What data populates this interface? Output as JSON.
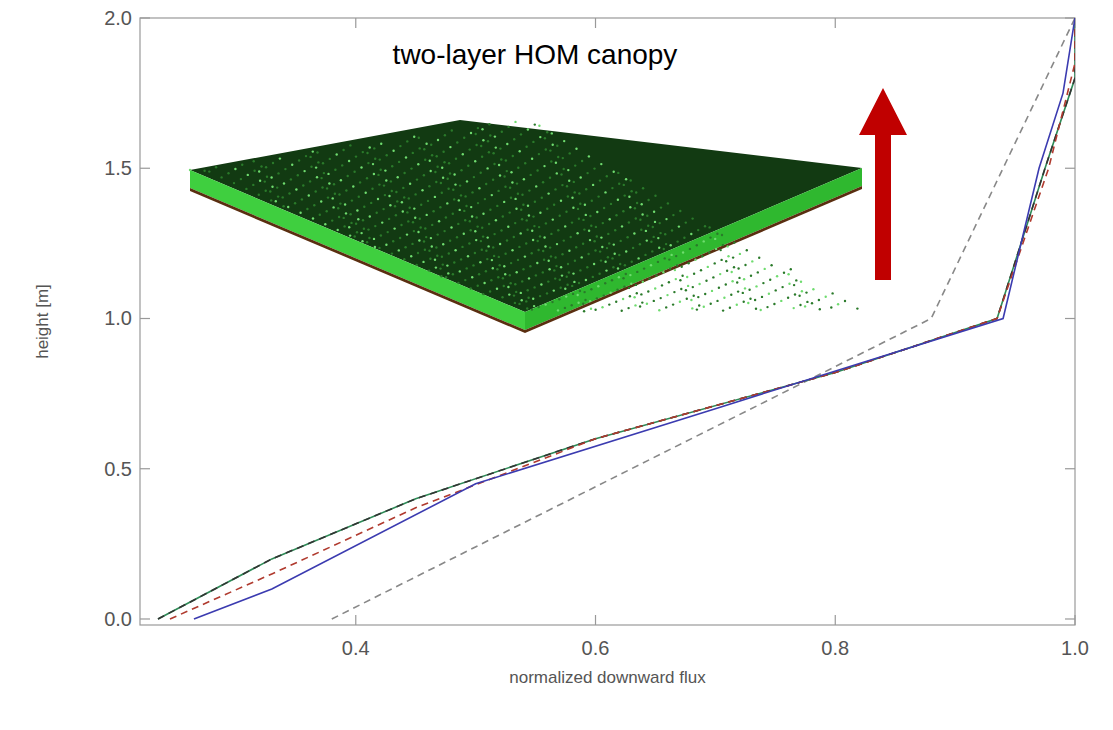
{
  "chart_data": {
    "type": "line",
    "annotation": "two-layer HOM canopy",
    "x_label": "normalized downward flux",
    "y_label": "height [m]",
    "xlim": [
      0.22,
      1.0
    ],
    "ylim": [
      -0.02,
      2.0
    ],
    "xticks": [
      0.4,
      0.6,
      0.8,
      {
        "value": 1.0,
        "label": "1.0"
      }
    ],
    "yticks": [
      {
        "value": 0.0,
        "label": "0.0"
      },
      0.5,
      {
        "value": 1.0,
        "label": "1.0"
      },
      1.5,
      {
        "value": 2.0,
        "label": "2.0"
      }
    ],
    "grid": false,
    "series": [
      {
        "color": "#888888",
        "line_style": "dashed",
        "x": [
          0.38,
          0.88,
          1.0
        ],
        "values": [
          0.0,
          1.0,
          2.0
        ]
      },
      {
        "color": "#2e8b57",
        "line_style": "solid",
        "x": [
          0.235,
          0.33,
          0.45,
          0.6,
          0.8,
          0.935,
          0.975,
          1.0,
          1.0
        ],
        "values": [
          0.0,
          0.2,
          0.4,
          0.6,
          0.82,
          1.0,
          1.5,
          1.8,
          2.0
        ]
      },
      {
        "color": "#333333",
        "line_style": "dashed",
        "x": [
          0.235,
          0.33,
          0.45,
          0.6,
          0.8,
          0.935,
          0.975,
          1.0,
          1.0
        ],
        "values": [
          0.0,
          0.2,
          0.4,
          0.6,
          0.82,
          1.0,
          1.5,
          1.8,
          2.0
        ]
      },
      {
        "color": "#b03a2e",
        "line_style": "dashed",
        "x": [
          0.245,
          0.33,
          0.45,
          0.6,
          0.8,
          0.935,
          0.978,
          1.0,
          1.0
        ],
        "values": [
          0.0,
          0.15,
          0.37,
          0.6,
          0.82,
          1.0,
          1.5,
          1.85,
          2.0
        ]
      },
      {
        "color": "#3b3bb0",
        "line_style": "solid",
        "x": [
          0.265,
          0.33,
          0.5,
          0.7,
          0.94,
          0.97,
          0.99,
          1.0
        ],
        "values": [
          0.0,
          0.1,
          0.45,
          0.7,
          1.0,
          1.5,
          1.75,
          2.0
        ]
      }
    ]
  }
}
